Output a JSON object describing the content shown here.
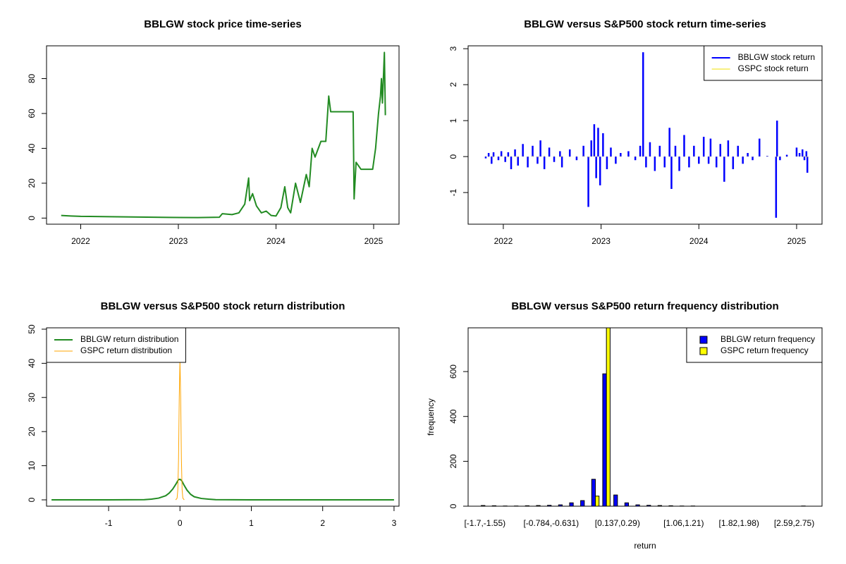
{
  "chart_data": [
    {
      "type": "line",
      "title": "BBLGW stock price time-series",
      "x": [
        2021.8,
        2021.9,
        2022.0,
        2022.3,
        2022.6,
        2022.9,
        2023.2,
        2023.42,
        2023.45,
        2023.55,
        2023.62,
        2023.68,
        2023.72,
        2023.73,
        2023.76,
        2023.8,
        2023.85,
        2023.9,
        2023.95,
        2024.0,
        2024.05,
        2024.09,
        2024.12,
        2024.15,
        2024.2,
        2024.25,
        2024.31,
        2024.34,
        2024.37,
        2024.4,
        2024.46,
        2024.51,
        2024.54,
        2024.56,
        2024.79,
        2024.8,
        2024.82,
        2024.87,
        2024.99,
        2025.02,
        2025.05,
        2025.07,
        2025.08,
        2025.09,
        2025.11,
        2025.12
      ],
      "values": [
        1.5,
        1.2,
        1.0,
        0.8,
        0.6,
        0.4,
        0.3,
        0.5,
        2.5,
        2.0,
        3,
        8,
        23,
        10,
        14,
        7,
        3,
        4,
        1.5,
        1.2,
        6,
        18,
        6,
        3,
        20,
        9,
        25,
        18,
        40,
        35,
        44,
        44,
        70,
        61,
        61,
        11,
        32,
        28,
        28,
        40,
        60,
        70,
        80,
        66,
        95,
        59
      ],
      "color": "#228B22",
      "xlim": [
        2021.65,
        2025.26
      ],
      "xticks": [
        2022,
        2023,
        2024,
        2025
      ],
      "ylim": [
        -3.5,
        98.8
      ],
      "yticks": [
        0,
        20,
        40,
        60,
        80
      ]
    },
    {
      "type": "stem",
      "title": "BBLGW versus S&P500 stock return time-series",
      "x": [
        2021.82,
        2021.85,
        2021.88,
        2021.9,
        2021.95,
        2021.98,
        2022.02,
        2022.05,
        2022.08,
        2022.12,
        2022.15,
        2022.2,
        2022.25,
        2022.3,
        2022.35,
        2022.38,
        2022.42,
        2022.47,
        2022.52,
        2022.58,
        2022.6,
        2022.68,
        2022.75,
        2022.82,
        2022.87,
        2022.9,
        2022.93,
        2022.95,
        2022.97,
        2022.99,
        2023.02,
        2023.06,
        2023.1,
        2023.15,
        2023.2,
        2023.28,
        2023.35,
        2023.4,
        2023.43,
        2023.46,
        2023.5,
        2023.55,
        2023.6,
        2023.65,
        2023.7,
        2023.72,
        2023.76,
        2023.8,
        2023.85,
        2023.9,
        2023.95,
        2024.0,
        2024.05,
        2024.1,
        2024.12,
        2024.18,
        2024.22,
        2024.26,
        2024.3,
        2024.35,
        2024.4,
        2024.45,
        2024.5,
        2024.55,
        2024.62,
        2024.7,
        2024.79,
        2024.8,
        2024.83,
        2024.9,
        2025.0,
        2025.03,
        2025.06,
        2025.08,
        2025.1,
        2025.11
      ],
      "series": [
        {
          "name": "BBLGW stock return",
          "color": "#0000FF",
          "values": [
            -0.05,
            0.1,
            -0.2,
            0.12,
            -0.1,
            0.15,
            -0.15,
            0.12,
            -0.35,
            0.2,
            -0.25,
            0.35,
            -0.3,
            0.3,
            -0.2,
            0.45,
            -0.35,
            0.25,
            -0.15,
            0.15,
            -0.3,
            0.2,
            -0.1,
            0.3,
            -1.4,
            0.45,
            0.9,
            -0.6,
            0.8,
            -0.8,
            0.65,
            -0.35,
            0.25,
            -0.2,
            0.1,
            0.15,
            -0.1,
            0.3,
            2.9,
            -0.3,
            0.4,
            -0.4,
            0.3,
            -0.3,
            0.8,
            -0.9,
            0.3,
            -0.4,
            0.6,
            -0.3,
            0.3,
            -0.2,
            0.55,
            -0.2,
            0.5,
            -0.3,
            0.35,
            -0.7,
            0.45,
            -0.35,
            0.3,
            -0.2,
            0.1,
            -0.1,
            0.5,
            0.02,
            -1.7,
            1.0,
            -0.1,
            0.05,
            0.25,
            0.1,
            0.2,
            -0.1,
            0.15,
            -0.45
          ]
        },
        {
          "name": "GSPC stock return",
          "color": "#F2E200",
          "values": [
            0.01,
            -0.01,
            0.01,
            -0.02,
            0.01,
            0.02,
            -0.01,
            -0.02,
            0.01,
            0.02,
            -0.02,
            0.01,
            -0.01,
            0.02,
            -0.02,
            0.01,
            0.02,
            -0.01,
            0.01,
            -0.02,
            0.02,
            -0.01,
            0.01,
            0.02,
            -0.02,
            0.01,
            0.02,
            -0.01,
            0.01,
            -0.01,
            0.01,
            0.01,
            -0.01,
            0.01,
            0.01,
            -0.01,
            0.01,
            0.01,
            0.01,
            -0.01,
            0.01,
            0.01,
            -0.01,
            0.01,
            -0.01,
            0.01,
            0.01,
            0.01,
            -0.01,
            0.01,
            0.01,
            0.01,
            -0.01,
            0.01,
            0.01,
            -0.01,
            0.01,
            -0.01,
            0.01,
            0.01,
            -0.01,
            0.01,
            0.01,
            -0.01,
            0.01,
            0.01,
            -0.01,
            0.01,
            0.01,
            -0.01,
            0.01,
            0.01,
            -0.01,
            0.01,
            0.01,
            -0.02
          ]
        }
      ],
      "xlim": [
        2021.64,
        2025.26
      ],
      "xticks": [
        2022,
        2023,
        2024,
        2025
      ],
      "ylim": [
        -1.88,
        3.08
      ],
      "yticks": [
        -1,
        0,
        1,
        2,
        3
      ],
      "legend": "topright"
    },
    {
      "type": "line",
      "title": "BBLGW versus S&P500 stock return distribution",
      "x": [
        -1.8,
        -1,
        -0.5,
        -0.4,
        -0.3,
        -0.2,
        -0.15,
        -0.1,
        -0.06,
        -0.04,
        -0.03,
        -0.02,
        -0.01,
        0,
        0.01,
        0.02,
        0.03,
        0.04,
        0.06,
        0.1,
        0.15,
        0.2,
        0.3,
        0.4,
        0.5,
        1,
        2,
        3
      ],
      "series": [
        {
          "name": "BBLGW return distribution",
          "color": "#228B22",
          "values": [
            0,
            0,
            0.05,
            0.2,
            0.5,
            1.2,
            2,
            3.2,
            4.5,
            5.2,
            5.6,
            5.9,
            6,
            6,
            5.9,
            5.7,
            5.4,
            5,
            4.2,
            2.8,
            1.6,
            0.9,
            0.4,
            0.2,
            0.05,
            0,
            0,
            0
          ]
        },
        {
          "name": "GSPC return distribution",
          "color": "#FFA500",
          "values": [
            null,
            null,
            null,
            null,
            null,
            null,
            null,
            null,
            0,
            0.5,
            3,
            12,
            30,
            41,
            30,
            12,
            3,
            0.5,
            0,
            null,
            null,
            null,
            null,
            null,
            null,
            null,
            null,
            null
          ]
        }
      ],
      "xlim": [
        -1.87,
        3.07
      ],
      "xticks": [
        -1,
        0,
        1,
        2,
        3
      ],
      "ylim": [
        -1.86,
        50.4
      ],
      "yticks": [
        0,
        10,
        20,
        30,
        40,
        50
      ],
      "legend": "topleft"
    },
    {
      "type": "bar",
      "title": "BBLGW versus S&P500 return frequency distribution",
      "xlabel": "return",
      "ylabel": "frequency",
      "categories": [
        "[-1.7,-1.55)",
        null,
        null,
        null,
        null,
        null,
        "[-0.784,-0.631)",
        null,
        null,
        null,
        null,
        null,
        "[0.137,0.29)",
        null,
        null,
        null,
        null,
        null,
        "[1.06,1.21)",
        null,
        null,
        null,
        null,
        "[1.82,1.98)",
        null,
        null,
        null,
        null,
        "[2.59,2.75)",
        null
      ],
      "series": [
        {
          "name": "BBLGW return frequency",
          "color": "#0000FF",
          "values": [
            3,
            2,
            1,
            1,
            2,
            3,
            4,
            6,
            15,
            25,
            120,
            590,
            50,
            15,
            6,
            4,
            3,
            2,
            1,
            1,
            0,
            0,
            0,
            0,
            0,
            0,
            0,
            0,
            0,
            1
          ]
        },
        {
          "name": "GSPC return frequency",
          "color": "#FFFF00",
          "values": [
            0,
            0,
            0,
            0,
            0,
            0,
            0,
            0,
            0,
            0,
            45,
            815,
            0,
            0,
            0,
            0,
            0,
            0,
            0,
            0,
            0,
            0,
            0,
            0,
            0,
            0,
            0,
            0,
            0,
            0
          ]
        }
      ],
      "ylim": [
        0,
        795
      ],
      "yticks": [
        0,
        200,
        400,
        600
      ],
      "legend": "topright"
    }
  ]
}
